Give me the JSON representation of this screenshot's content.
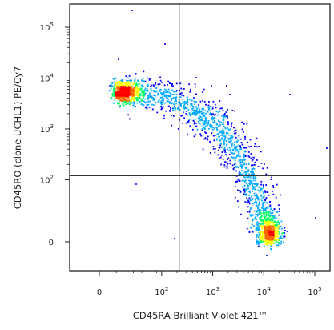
{
  "chart_data": {
    "type": "scatter",
    "style": "flow-cytometry density dot plot (biexponential axes) with quadrant gates",
    "xlabel": "CD45RA Brilliant Violet 421™",
    "ylabel": "CD45RO (clone UCHL1) PE/Cy7",
    "x_ticks": [
      {
        "value": 0,
        "label": "0"
      },
      {
        "value": 100,
        "label": "10",
        "sup": "2"
      },
      {
        "value": 1000,
        "label": "10",
        "sup": "3"
      },
      {
        "value": 10000,
        "label": "10",
        "sup": "4"
      },
      {
        "value": 100000,
        "label": "10",
        "sup": "5"
      }
    ],
    "y_ticks": [
      {
        "value": 0,
        "label": "0"
      },
      {
        "value": 100,
        "label": "10",
        "sup": "2"
      },
      {
        "value": 1000,
        "label": "10",
        "sup": "3"
      },
      {
        "value": 10000,
        "label": "10",
        "sup": "4"
      },
      {
        "value": 100000,
        "label": "10",
        "sup": "5"
      }
    ],
    "quadrant_gates": {
      "x": 220,
      "y": 120
    },
    "population": {
      "description": "continuous curved population from CD45RO-high/CD45RA-low to CD45RA-high/CD45RO-low",
      "path": [
        {
          "x": 20,
          "y": 5500
        },
        {
          "x": 60,
          "y": 5000
        },
        {
          "x": 150,
          "y": 3800
        },
        {
          "x": 400,
          "y": 2500
        },
        {
          "x": 900,
          "y": 1500
        },
        {
          "x": 2000,
          "y": 700
        },
        {
          "x": 3500,
          "y": 250
        },
        {
          "x": 6000,
          "y": 80
        },
        {
          "x": 10000,
          "y": 30
        },
        {
          "x": 15000,
          "y": 0
        }
      ],
      "hotspots": [
        {
          "x": 55,
          "y": 5200,
          "density": "high"
        },
        {
          "x": 9000,
          "y": 20,
          "density": "high"
        },
        {
          "x": 1200,
          "y": 1300,
          "density": "medium"
        }
      ],
      "density_colors": [
        "#0000ff",
        "#00aaff",
        "#00ff66",
        "#ffff00",
        "#ff6600",
        "#ff0000"
      ]
    }
  }
}
